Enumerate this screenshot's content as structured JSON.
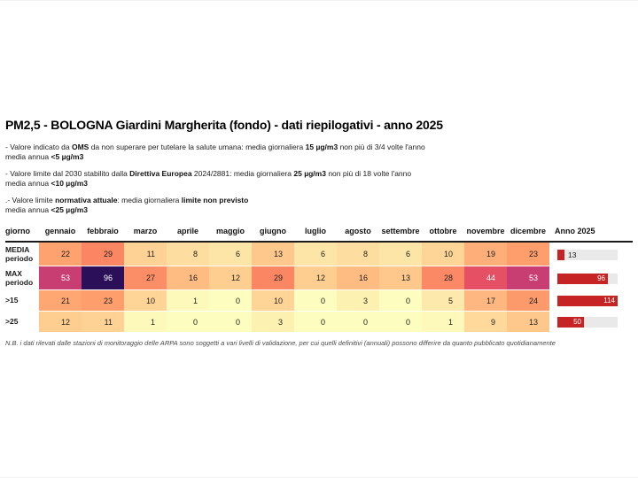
{
  "title": "PM2,5 - BOLOGNA Giardini Margherita (fondo) - dati riepilogativi - anno 2025",
  "notes": [
    {
      "name": "note-oms",
      "lines": [
        [
          {
            "t": "- Valore indicato da "
          },
          {
            "t": "OMS",
            "b": true
          },
          {
            "t": " da non superare per tutelare la salute umana: media giornaliera "
          },
          {
            "t": "15 µg/m3",
            "b": true
          },
          {
            "t": " non più di 3/4 volte l'anno"
          }
        ],
        [
          {
            "t": "media annua "
          },
          {
            "t": "<5 µg/m3",
            "b": true
          }
        ]
      ]
    },
    {
      "name": "note-direttiva-europea",
      "lines": [
        [
          {
            "t": "- Valore limite dal 2030 stabilito dalla "
          },
          {
            "t": "Direttiva Europea",
            "b": true
          },
          {
            "t": " 2024/2881: media giornaliera "
          },
          {
            "t": "25 µg/m3",
            "b": true
          },
          {
            "t": " non più di 18 volte l'anno"
          }
        ],
        [
          {
            "t": "media annua "
          },
          {
            "t": "<10 µg/m3",
            "b": true
          }
        ]
      ]
    },
    {
      "name": "note-normativa-attuale",
      "lines": [
        [
          {
            "t": ".- Valore limite "
          },
          {
            "t": "normativa attuale",
            "b": true
          },
          {
            "t": ": media giornaliera "
          },
          {
            "t": "limite non previsto",
            "b": true
          }
        ],
        [
          {
            "t": "media annua "
          },
          {
            "t": "<25 µg/m3",
            "b": true
          }
        ]
      ]
    }
  ],
  "chart_data": {
    "type": "heatmap-table",
    "row_header": "giorno",
    "months": [
      "gennaio",
      "febbraio",
      "marzo",
      "aprile",
      "maggio",
      "giugno",
      "luglio",
      "agosto",
      "settembre",
      "ottobre",
      "novembre",
      "dicembre"
    ],
    "anno_header": "Anno 2025",
    "rows": [
      {
        "label": "MEDIA periodo",
        "label_lines": [
          "MEDIA",
          "periodo"
        ],
        "values": [
          22,
          29,
          11,
          8,
          6,
          13,
          6,
          8,
          6,
          10,
          19,
          23
        ],
        "anno": 13
      },
      {
        "label": "MAX periodo",
        "label_lines": [
          "MAX",
          "periodo"
        ],
        "values": [
          53,
          96,
          27,
          16,
          12,
          29,
          12,
          16,
          13,
          28,
          44,
          53
        ],
        "anno": 96
      },
      {
        "label": ">15",
        "label_lines": [
          ">15"
        ],
        "values": [
          21,
          23,
          10,
          1,
          0,
          10,
          0,
          3,
          0,
          5,
          17,
          24
        ],
        "anno": 114
      },
      {
        "label": ">25",
        "label_lines": [
          ">25"
        ],
        "values": [
          12,
          11,
          1,
          0,
          0,
          3,
          0,
          0,
          0,
          1,
          9,
          13
        ],
        "anno": 50
      }
    ],
    "colormap": "magma_r",
    "vmin": 0,
    "vmax": 114,
    "heat_palette": {
      "0": {
        "bg": "#fcfdbf",
        "fg": "#222222"
      },
      "1": {
        "bg": "#fcf9bb",
        "fg": "#222222"
      },
      "3": {
        "bg": "#fdf1b2",
        "fg": "#222222"
      },
      "5": {
        "bg": "#fde9ab",
        "fg": "#222222"
      },
      "6": {
        "bg": "#fde5a7",
        "fg": "#222222"
      },
      "8": {
        "bg": "#fedda0",
        "fg": "#222222"
      },
      "9": {
        "bg": "#fed99b",
        "fg": "#222222"
      },
      "10": {
        "bg": "#fed597",
        "fg": "#222222"
      },
      "11": {
        "bg": "#fed194",
        "fg": "#222222"
      },
      "12": {
        "bg": "#fecd90",
        "fg": "#222222"
      },
      "13": {
        "bg": "#fec88d",
        "fg": "#222222"
      },
      "16": {
        "bg": "#febc83",
        "fg": "#222222"
      },
      "17": {
        "bg": "#feb780",
        "fg": "#222222"
      },
      "19": {
        "bg": "#feaf79",
        "fg": "#222222"
      },
      "21": {
        "bg": "#fea773",
        "fg": "#222222"
      },
      "22": {
        "bg": "#fea270",
        "fg": "#222222"
      },
      "23": {
        "bg": "#fe9e6d",
        "fg": "#222222"
      },
      "24": {
        "bg": "#fd9a6b",
        "fg": "#222222"
      },
      "27": {
        "bg": "#fb8e67",
        "fg": "#222222"
      },
      "28": {
        "bg": "#fb8965",
        "fg": "#222222"
      },
      "29": {
        "bg": "#fa8664",
        "fg": "#222222"
      },
      "44": {
        "bg": "#e55064",
        "fg": "#ffffff"
      },
      "53": {
        "bg": "#c83e72",
        "fg": "#ffffff"
      },
      "96": {
        "bg": "#2b0f58",
        "fg": "#ffffff"
      }
    },
    "anno_bar": {
      "max": 114,
      "fill": "#c62424",
      "track": "#e9e9e9",
      "label_inside_threshold": 0.3
    }
  },
  "footer": "N.B. i dati rilevati dalle stazioni di monitoraggio delle ARPA sono soggetti a vari livelli di validazione, per cui quelli definitivi (annuali) possono differire da quanto pubblicato quotidianamente"
}
